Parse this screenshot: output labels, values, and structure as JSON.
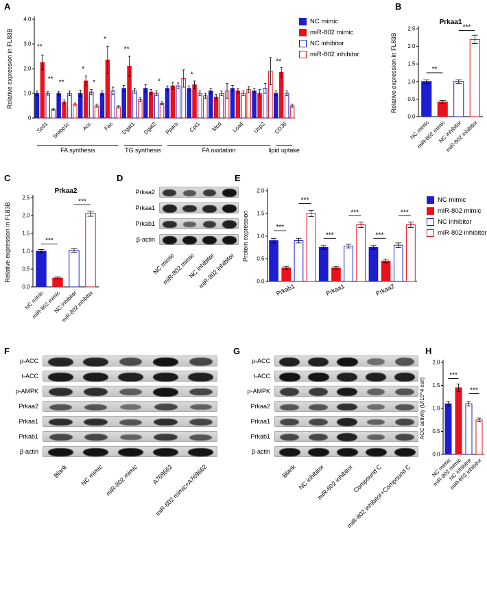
{
  "colors": {
    "blue": "#1d1dd2",
    "red": "#e8121d",
    "axis": "#000000",
    "blot_band": "#141414"
  },
  "legend": {
    "items": [
      {
        "label": "NC mimic",
        "fill": "#1d1dd2",
        "stroke": "#1d1dd2"
      },
      {
        "label": "miR-802 mimic",
        "fill": "#e8121d",
        "stroke": "#e8121d"
      },
      {
        "label": "NC inhibitor",
        "fill": "#ffffff",
        "stroke": "#1d1dd2"
      },
      {
        "label": "miR-802 inhibitor",
        "fill": "#ffffff",
        "stroke": "#e8121d"
      }
    ]
  },
  "panels": {
    "A": {
      "label": "A",
      "chart_data": {
        "type": "bar",
        "ylabel": "Relative expression in FL83B",
        "ylim": [
          0,
          4.0
        ],
        "yticks": [
          {
            "v": 0,
            "label": "0"
          },
          {
            "v": 1,
            "label": "1.0"
          },
          {
            "v": 2,
            "label": "2.0"
          },
          {
            "v": 3,
            "label": "3.0"
          },
          {
            "v": 4,
            "label": "4.0"
          }
        ],
        "categories": [
          "Scd1",
          "Srebp1c",
          "Acc",
          "Fas",
          "Dgat1",
          "Dgat2",
          "Ppara",
          "Cpt1",
          "Mcd",
          "Lcad",
          "Ucp2",
          "CD36"
        ],
        "series": [
          {
            "name": "NC mimic",
            "values": [
              1.0,
              1.0,
              1.0,
              1.0,
              1.2,
              1.2,
              1.2,
              1.2,
              1.1,
              1.2,
              1.1,
              1.0
            ],
            "err": [
              0.1,
              0.08,
              0.12,
              0.1,
              0.12,
              0.15,
              0.1,
              0.1,
              0.1,
              0.12,
              0.1,
              0.1
            ]
          },
          {
            "name": "miR-802 mimic",
            "values": [
              2.25,
              0.65,
              1.5,
              2.35,
              2.1,
              1.05,
              1.3,
              1.35,
              0.85,
              1.1,
              1.0,
              1.85
            ],
            "err": [
              0.3,
              0.08,
              0.2,
              0.55,
              0.4,
              0.1,
              0.15,
              0.15,
              0.1,
              0.1,
              0.15,
              0.2
            ]
          },
          {
            "name": "NC inhibitor",
            "values": [
              1.0,
              1.0,
              1.05,
              1.1,
              1.1,
              1.0,
              1.3,
              1.0,
              1.0,
              1.0,
              1.2,
              1.0
            ],
            "err": [
              0.08,
              0.1,
              0.1,
              0.15,
              0.1,
              0.1,
              0.12,
              0.1,
              0.1,
              0.1,
              0.2,
              0.1
            ]
          },
          {
            "name": "miR-802 inhibitor",
            "values": [
              0.35,
              0.55,
              0.5,
              0.45,
              0.75,
              0.6,
              1.6,
              0.9,
              1.1,
              1.15,
              1.9,
              0.5
            ],
            "err": [
              0.05,
              0.06,
              0.06,
              0.05,
              0.08,
              0.06,
              0.35,
              0.1,
              0.3,
              0.12,
              0.55,
              0.06
            ]
          }
        ],
        "ann_lines": false,
        "annotations": [
          {
            "i": 0,
            "j": 1,
            "y": 2.75,
            "text": "**"
          },
          {
            "i": 2,
            "j": 3,
            "y": 1.45,
            "text": "**"
          },
          {
            "i": 4,
            "j": 5,
            "y": 1.3,
            "text": "**"
          },
          {
            "i": 8,
            "j": 9,
            "y": 1.85,
            "text": "*"
          },
          {
            "i": 10,
            "j": 11,
            "y": 1.3,
            "text": "*"
          },
          {
            "i": 12,
            "j": 13,
            "y": 3.05,
            "text": "*"
          },
          {
            "i": 16,
            "j": 17,
            "y": 2.65,
            "text": "**"
          },
          {
            "i": 22,
            "j": 23,
            "y": 1.35,
            "text": "*"
          },
          {
            "i": 28,
            "j": 29,
            "y": 1.62,
            "text": "*"
          },
          {
            "i": 44,
            "j": 45,
            "y": 2.15,
            "text": "**"
          }
        ],
        "sections": [
          {
            "label": "FA synthesis",
            "from": 0,
            "to": 3
          },
          {
            "label": "TG synthesis",
            "from": 4,
            "to": 5
          },
          {
            "label": "FA oxidation",
            "from": 6,
            "to": 10
          },
          {
            "label": "lipid uptake",
            "from": 11,
            "to": 11
          }
        ]
      }
    },
    "B": {
      "label": "B",
      "chart_data": {
        "type": "bar",
        "title": "Prkaa1",
        "ylabel": "Relative expression in FL83B",
        "ylim": [
          0,
          2.5
        ],
        "yticks": [
          {
            "v": 0,
            "label": "0.0"
          },
          {
            "v": 0.5,
            "label": "0.5"
          },
          {
            "v": 1,
            "label": "1.0"
          },
          {
            "v": 1.5,
            "label": "1.5"
          },
          {
            "v": 2,
            "label": "2.0"
          },
          {
            "v": 2.5,
            "label": "2.5"
          }
        ],
        "categories": [
          "NC mimic",
          "miR-802 mimic",
          "NC inhibitor",
          "miR-802 inhibitor"
        ],
        "values": [
          1.0,
          0.42,
          1.0,
          2.2
        ],
        "err": [
          0.05,
          0.04,
          0.05,
          0.12
        ],
        "annotations": [
          {
            "i": 0,
            "j": 1,
            "y": 1.25,
            "text": "**"
          },
          {
            "i": 2,
            "j": 3,
            "y": 2.45,
            "text": "***"
          }
        ]
      }
    },
    "C": {
      "label": "C",
      "chart_data": {
        "type": "bar",
        "title": "Prkaa2",
        "ylabel": "Relative expression in FL83B",
        "ylim": [
          0,
          2.5
        ],
        "yticks": [
          {
            "v": 0,
            "label": "0.0"
          },
          {
            "v": 0.5,
            "label": "0.5"
          },
          {
            "v": 1,
            "label": "1.0"
          },
          {
            "v": 1.5,
            "label": "1.5"
          },
          {
            "v": 2,
            "label": "2.0"
          },
          {
            "v": 2.5,
            "label": "2.5"
          }
        ],
        "categories": [
          "NC mimic",
          "miR-802 mimic",
          "NC inhibitor",
          "miR-802 inhibitor"
        ],
        "values": [
          1.0,
          0.25,
          1.02,
          2.05
        ],
        "err": [
          0.05,
          0.03,
          0.05,
          0.07
        ],
        "annotations": [
          {
            "i": 0,
            "j": 1,
            "y": 1.2,
            "text": "***"
          },
          {
            "i": 2,
            "j": 3,
            "y": 2.3,
            "text": "***"
          }
        ]
      }
    },
    "D": {
      "label": "D",
      "blot": {
        "rows": [
          {
            "label": "Prkaa2",
            "bands": [
              0.75,
              0.5,
              0.7,
              1.0
            ]
          },
          {
            "label": "Prkaa1",
            "bands": [
              0.9,
              0.8,
              0.85,
              1.0
            ]
          },
          {
            "label": "Prkab1",
            "bands": [
              0.8,
              0.4,
              0.7,
              0.9
            ]
          },
          {
            "label": "β-actin",
            "bands": [
              1,
              1,
              1,
              1
            ]
          }
        ],
        "lanes": [
          "NC mimic",
          "miR-802 mimic",
          "NC inhibitor",
          "miR-802 inhibitor"
        ]
      }
    },
    "E": {
      "label": "E",
      "chart_data": {
        "type": "bar",
        "ylabel": "Protein expression",
        "ylim": [
          0,
          2.0
        ],
        "yticks": [
          {
            "v": 0,
            "label": "0.0"
          },
          {
            "v": 0.5,
            "label": "0.5"
          },
          {
            "v": 1,
            "label": "1.0"
          },
          {
            "v": 1.5,
            "label": "1.5"
          },
          {
            "v": 2,
            "label": "2.0"
          }
        ],
        "categories": [
          "Prkab1",
          "Prkaa1",
          "Prkaa2"
        ],
        "series": [
          {
            "name": "NC mimic",
            "values": [
              0.9,
              0.75,
              0.75
            ],
            "err": [
              0.05,
              0.04,
              0.04
            ]
          },
          {
            "name": "miR-802 mimic",
            "values": [
              0.3,
              0.3,
              0.45
            ],
            "err": [
              0.03,
              0.03,
              0.04
            ]
          },
          {
            "name": "NC inhibitor",
            "values": [
              0.9,
              0.78,
              0.8
            ],
            "err": [
              0.05,
              0.04,
              0.05
            ]
          },
          {
            "name": "miR-802 inhibitor",
            "values": [
              1.5,
              1.25,
              1.25
            ],
            "err": [
              0.07,
              0.06,
              0.06
            ]
          }
        ],
        "annotations": [
          {
            "i": 0,
            "j": 1,
            "y": 1.12,
            "text": "***"
          },
          {
            "i": 2,
            "j": 3,
            "y": 1.72,
            "text": "***"
          },
          {
            "i": 4,
            "j": 5,
            "y": 0.95,
            "text": "***"
          },
          {
            "i": 6,
            "j": 7,
            "y": 1.45,
            "text": "***"
          },
          {
            "i": 8,
            "j": 9,
            "y": 0.95,
            "text": "***"
          },
          {
            "i": 10,
            "j": 11,
            "y": 1.45,
            "text": "***"
          }
        ]
      }
    },
    "F": {
      "label": "F",
      "blot": {
        "rows": [
          {
            "label": "p-ACC",
            "weight": 1.25,
            "bands": [
              0.85,
              0.85,
              0.55,
              1.0,
              0.6
            ]
          },
          {
            "label": "t-ACC",
            "weight": 1.25,
            "bands": [
              0.95,
              0.95,
              0.9,
              0.95,
              0.9
            ]
          },
          {
            "label": "p-AMPK",
            "weight": 1.1,
            "bands": [
              0.8,
              0.8,
              0.45,
              1.0,
              0.6
            ]
          },
          {
            "label": "Prkaa2",
            "bands": [
              0.5,
              0.5,
              0.3,
              0.6,
              0.4
            ]
          },
          {
            "label": "Prkaa1",
            "bands": [
              0.8,
              0.8,
              0.5,
              0.8,
              0.6
            ]
          },
          {
            "label": "Prkab1",
            "bands": [
              0.6,
              0.6,
              0.4,
              0.7,
              0.5
            ]
          },
          {
            "label": "β-actin",
            "bands": [
              1,
              1,
              1,
              1,
              1
            ]
          }
        ],
        "lanes": [
          "Blank",
          "NC mimic",
          "miR-802 mimic",
          "A769662",
          "miR-802 mimic+A769662"
        ]
      }
    },
    "G": {
      "label": "G",
      "blot": {
        "rows": [
          {
            "label": "p-ACC",
            "weight": 1.25,
            "bands": [
              0.9,
              0.9,
              1.0,
              0.3,
              0.5
            ]
          },
          {
            "label": "t-ACC",
            "weight": 1.25,
            "bands": [
              1,
              1,
              0.9,
              0.9,
              0.9
            ]
          },
          {
            "label": "p-AMPK",
            "weight": 1.1,
            "bands": [
              0.7,
              0.7,
              0.95,
              0.4,
              0.5
            ]
          },
          {
            "label": "Prkaa2",
            "bands": [
              0.5,
              0.5,
              0.8,
              0.3,
              0.5
            ]
          },
          {
            "label": "Prkaa1",
            "bands": [
              0.6,
              0.6,
              0.9,
              0.4,
              0.6
            ]
          },
          {
            "label": "Prkab1",
            "bands": [
              0.6,
              0.6,
              0.9,
              0.4,
              0.6
            ]
          },
          {
            "label": "β-actin",
            "bands": [
              1,
              1,
              1,
              1,
              1
            ]
          }
        ],
        "lanes": [
          "Blank",
          "NC inhibitor",
          "miR-802 inhibitor",
          "Compound C",
          "miR-802 inhibitor+Compound C"
        ]
      }
    },
    "H": {
      "label": "H",
      "chart_data": {
        "type": "bar",
        "ylabel": "ACC activity (U/10^4 cell)",
        "ylim": [
          0,
          2.0
        ],
        "yticks": [
          {
            "v": 0,
            "label": "0.0"
          },
          {
            "v": 0.5,
            "label": "0.5"
          },
          {
            "v": 1,
            "label": "1.0"
          },
          {
            "v": 1.5,
            "label": "1.5"
          },
          {
            "v": 2,
            "label": "2.0"
          }
        ],
        "categories": [
          "NC mimic",
          "miR-802 mimic",
          "NC inhibitor",
          "miR-802 inhibitor"
        ],
        "values": [
          1.1,
          1.45,
          1.1,
          0.75
        ],
        "err": [
          0.05,
          0.08,
          0.05,
          0.04
        ],
        "annotations": [
          {
            "i": 0,
            "j": 1,
            "y": 1.65,
            "text": "***"
          },
          {
            "i": 2,
            "j": 3,
            "y": 1.32,
            "text": "***"
          }
        ]
      }
    }
  }
}
